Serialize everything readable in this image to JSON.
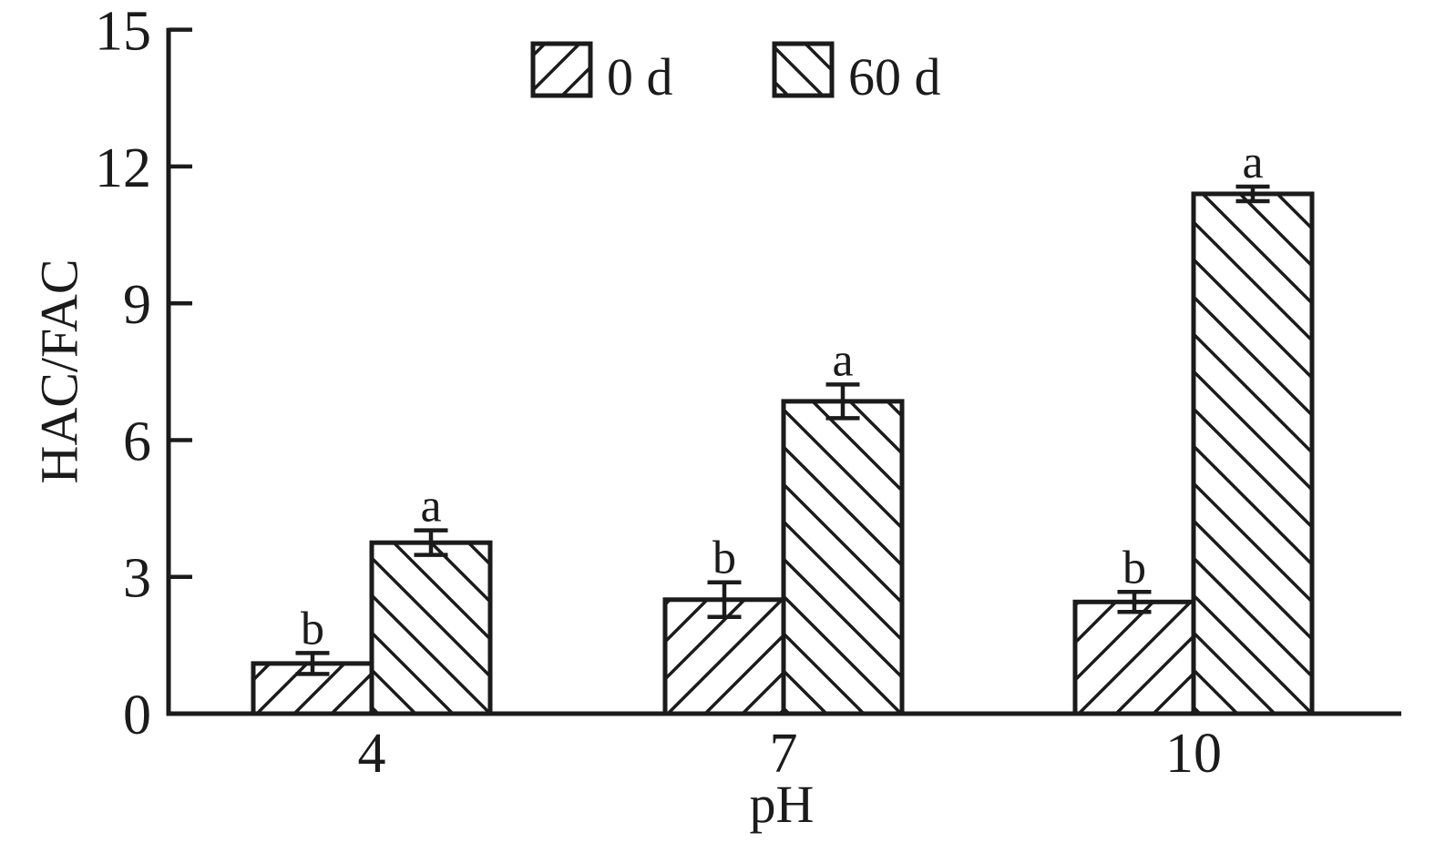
{
  "figure": {
    "background_color": "#ffffff",
    "ink_color": "#1b1b1b",
    "bar_fill_color": "#ffffff"
  },
  "chart_data": {
    "type": "bar",
    "title": "",
    "xlabel": "pH",
    "ylabel": "HAC/FAC",
    "categories": [
      "4",
      "7",
      "10"
    ],
    "ylim": [
      0,
      15
    ],
    "yticks": [
      "0",
      "3",
      "6",
      "9",
      "12",
      "15"
    ],
    "ytick_values": [
      0,
      3,
      6,
      9,
      12,
      15
    ],
    "grid": false,
    "legend_position": "top-center",
    "series": [
      {
        "name": "0 d",
        "hatch": "forward-diagonal",
        "values": [
          1.1,
          2.5,
          2.45
        ],
        "errors": [
          0.23,
          0.38,
          0.22
        ],
        "sig_letters": [
          "b",
          "b",
          "b"
        ]
      },
      {
        "name": "60 d",
        "hatch": "back-diagonal",
        "values": [
          3.75,
          6.85,
          11.4
        ],
        "errors": [
          0.27,
          0.37,
          0.16
        ],
        "sig_letters": [
          "a",
          "a",
          "a"
        ]
      }
    ]
  }
}
